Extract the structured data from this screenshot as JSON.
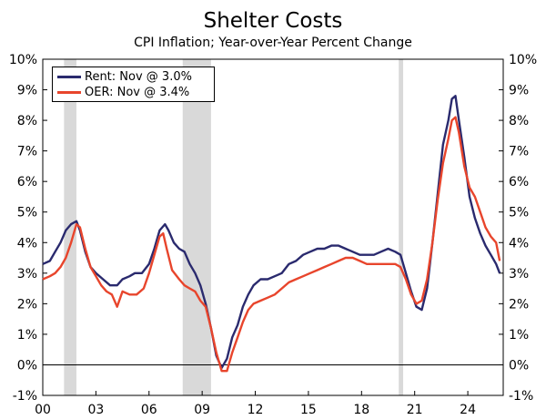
{
  "chart_data": {
    "type": "line",
    "title": "Shelter Costs",
    "subtitle": "CPI Inflation; Year-over-Year Percent Change",
    "xlabel": "",
    "ylabel": "",
    "xlim": [
      2000.0,
      2026.0
    ],
    "ylim": [
      -1,
      10
    ],
    "x_tick_values": [
      2000,
      2003,
      2006,
      2009,
      2012,
      2015,
      2018,
      2021,
      2024
    ],
    "x_tick_labels": [
      "00",
      "03",
      "06",
      "09",
      "12",
      "15",
      "18",
      "21",
      "24"
    ],
    "y_tick_values": [
      -1,
      0,
      1,
      2,
      3,
      4,
      5,
      6,
      7,
      8,
      9,
      10
    ],
    "y_tick_labels": [
      "-1%",
      "0%",
      "1%",
      "2%",
      "3%",
      "4%",
      "5%",
      "6%",
      "7%",
      "8%",
      "9%",
      "10%"
    ],
    "recessions": [
      [
        2001.2,
        2001.9
      ],
      [
        2007.9,
        2009.5
      ],
      [
        2020.1,
        2020.35
      ]
    ],
    "series": [
      {
        "name": "Rent: Nov @ 3.0%",
        "color": "#2a2a6e",
        "x": [
          2000.0,
          2000.4,
          2000.7,
          2001.0,
          2001.3,
          2001.6,
          2001.9,
          2002.1,
          2002.4,
          2002.7,
          2003.0,
          2003.4,
          2003.8,
          2004.2,
          2004.5,
          2004.9,
          2005.2,
          2005.6,
          2006.0,
          2006.3,
          2006.6,
          2006.9,
          2007.1,
          2007.4,
          2007.7,
          2008.0,
          2008.3,
          2008.6,
          2008.9,
          2009.2,
          2009.5,
          2009.8,
          2010.1,
          2010.4,
          2010.7,
          2011.0,
          2011.3,
          2011.6,
          2011.9,
          2012.3,
          2012.7,
          2013.1,
          2013.5,
          2013.9,
          2014.3,
          2014.7,
          2015.1,
          2015.5,
          2015.9,
          2016.3,
          2016.7,
          2017.1,
          2017.5,
          2017.9,
          2018.3,
          2018.7,
          2019.1,
          2019.5,
          2019.9,
          2020.2,
          2020.5,
          2020.8,
          2021.1,
          2021.4,
          2021.7,
          2022.0,
          2022.3,
          2022.6,
          2022.9,
          2023.1,
          2023.3,
          2023.5,
          2023.8,
          2024.1,
          2024.4,
          2024.7,
          2025.0,
          2025.3,
          2025.6,
          2025.8
        ],
        "values": [
          3.3,
          3.4,
          3.7,
          4.0,
          4.4,
          4.6,
          4.7,
          4.4,
          3.7,
          3.2,
          3.0,
          2.8,
          2.6,
          2.6,
          2.8,
          2.9,
          3.0,
          3.0,
          3.3,
          3.8,
          4.4,
          4.6,
          4.4,
          4.0,
          3.8,
          3.7,
          3.3,
          3.0,
          2.6,
          2.0,
          1.2,
          0.3,
          -0.1,
          0.2,
          0.9,
          1.3,
          1.9,
          2.3,
          2.6,
          2.8,
          2.8,
          2.9,
          3.0,
          3.3,
          3.4,
          3.6,
          3.7,
          3.8,
          3.8,
          3.9,
          3.9,
          3.8,
          3.7,
          3.6,
          3.6,
          3.6,
          3.7,
          3.8,
          3.7,
          3.6,
          3.0,
          2.4,
          1.9,
          1.8,
          2.5,
          4.0,
          5.6,
          7.2,
          8.0,
          8.7,
          8.8,
          8.0,
          6.8,
          5.5,
          4.8,
          4.3,
          3.9,
          3.6,
          3.3,
          3.0
        ]
      },
      {
        "name": "OER: Nov @ 3.4%",
        "color": "#e8452c",
        "x": [
          2000.0,
          2000.4,
          2000.7,
          2001.0,
          2001.3,
          2001.6,
          2001.9,
          2002.1,
          2002.4,
          2002.7,
          2003.0,
          2003.3,
          2003.6,
          2003.9,
          2004.2,
          2004.5,
          2004.9,
          2005.3,
          2005.7,
          2006.0,
          2006.3,
          2006.6,
          2006.8,
          2007.0,
          2007.3,
          2007.7,
          2008.0,
          2008.3,
          2008.6,
          2008.9,
          2009.2,
          2009.5,
          2009.8,
          2010.1,
          2010.4,
          2010.7,
          2011.0,
          2011.3,
          2011.6,
          2011.9,
          2012.3,
          2012.7,
          2013.1,
          2013.5,
          2013.9,
          2014.3,
          2014.7,
          2015.1,
          2015.5,
          2015.9,
          2016.3,
          2016.7,
          2017.1,
          2017.5,
          2017.9,
          2018.3,
          2018.7,
          2019.1,
          2019.5,
          2019.9,
          2020.2,
          2020.5,
          2020.8,
          2021.1,
          2021.4,
          2021.7,
          2022.0,
          2022.3,
          2022.6,
          2022.9,
          2023.1,
          2023.3,
          2023.5,
          2023.8,
          2024.1,
          2024.4,
          2024.7,
          2025.0,
          2025.3,
          2025.6,
          2025.8
        ],
        "values": [
          2.8,
          2.9,
          3.0,
          3.2,
          3.5,
          4.0,
          4.6,
          4.5,
          3.8,
          3.2,
          2.9,
          2.6,
          2.4,
          2.3,
          1.9,
          2.4,
          2.3,
          2.3,
          2.5,
          3.0,
          3.6,
          4.2,
          4.3,
          3.8,
          3.1,
          2.8,
          2.6,
          2.5,
          2.4,
          2.1,
          1.9,
          1.2,
          0.4,
          -0.2,
          -0.2,
          0.4,
          0.9,
          1.4,
          1.8,
          2.0,
          2.1,
          2.2,
          2.3,
          2.5,
          2.7,
          2.8,
          2.9,
          3.0,
          3.1,
          3.2,
          3.3,
          3.4,
          3.5,
          3.5,
          3.4,
          3.3,
          3.3,
          3.3,
          3.3,
          3.3,
          3.2,
          2.8,
          2.3,
          2.0,
          2.1,
          2.8,
          4.0,
          5.4,
          6.6,
          7.4,
          8.0,
          8.1,
          7.6,
          6.5,
          5.8,
          5.5,
          5.0,
          4.5,
          4.2,
          4.0,
          3.4
        ]
      }
    ]
  }
}
